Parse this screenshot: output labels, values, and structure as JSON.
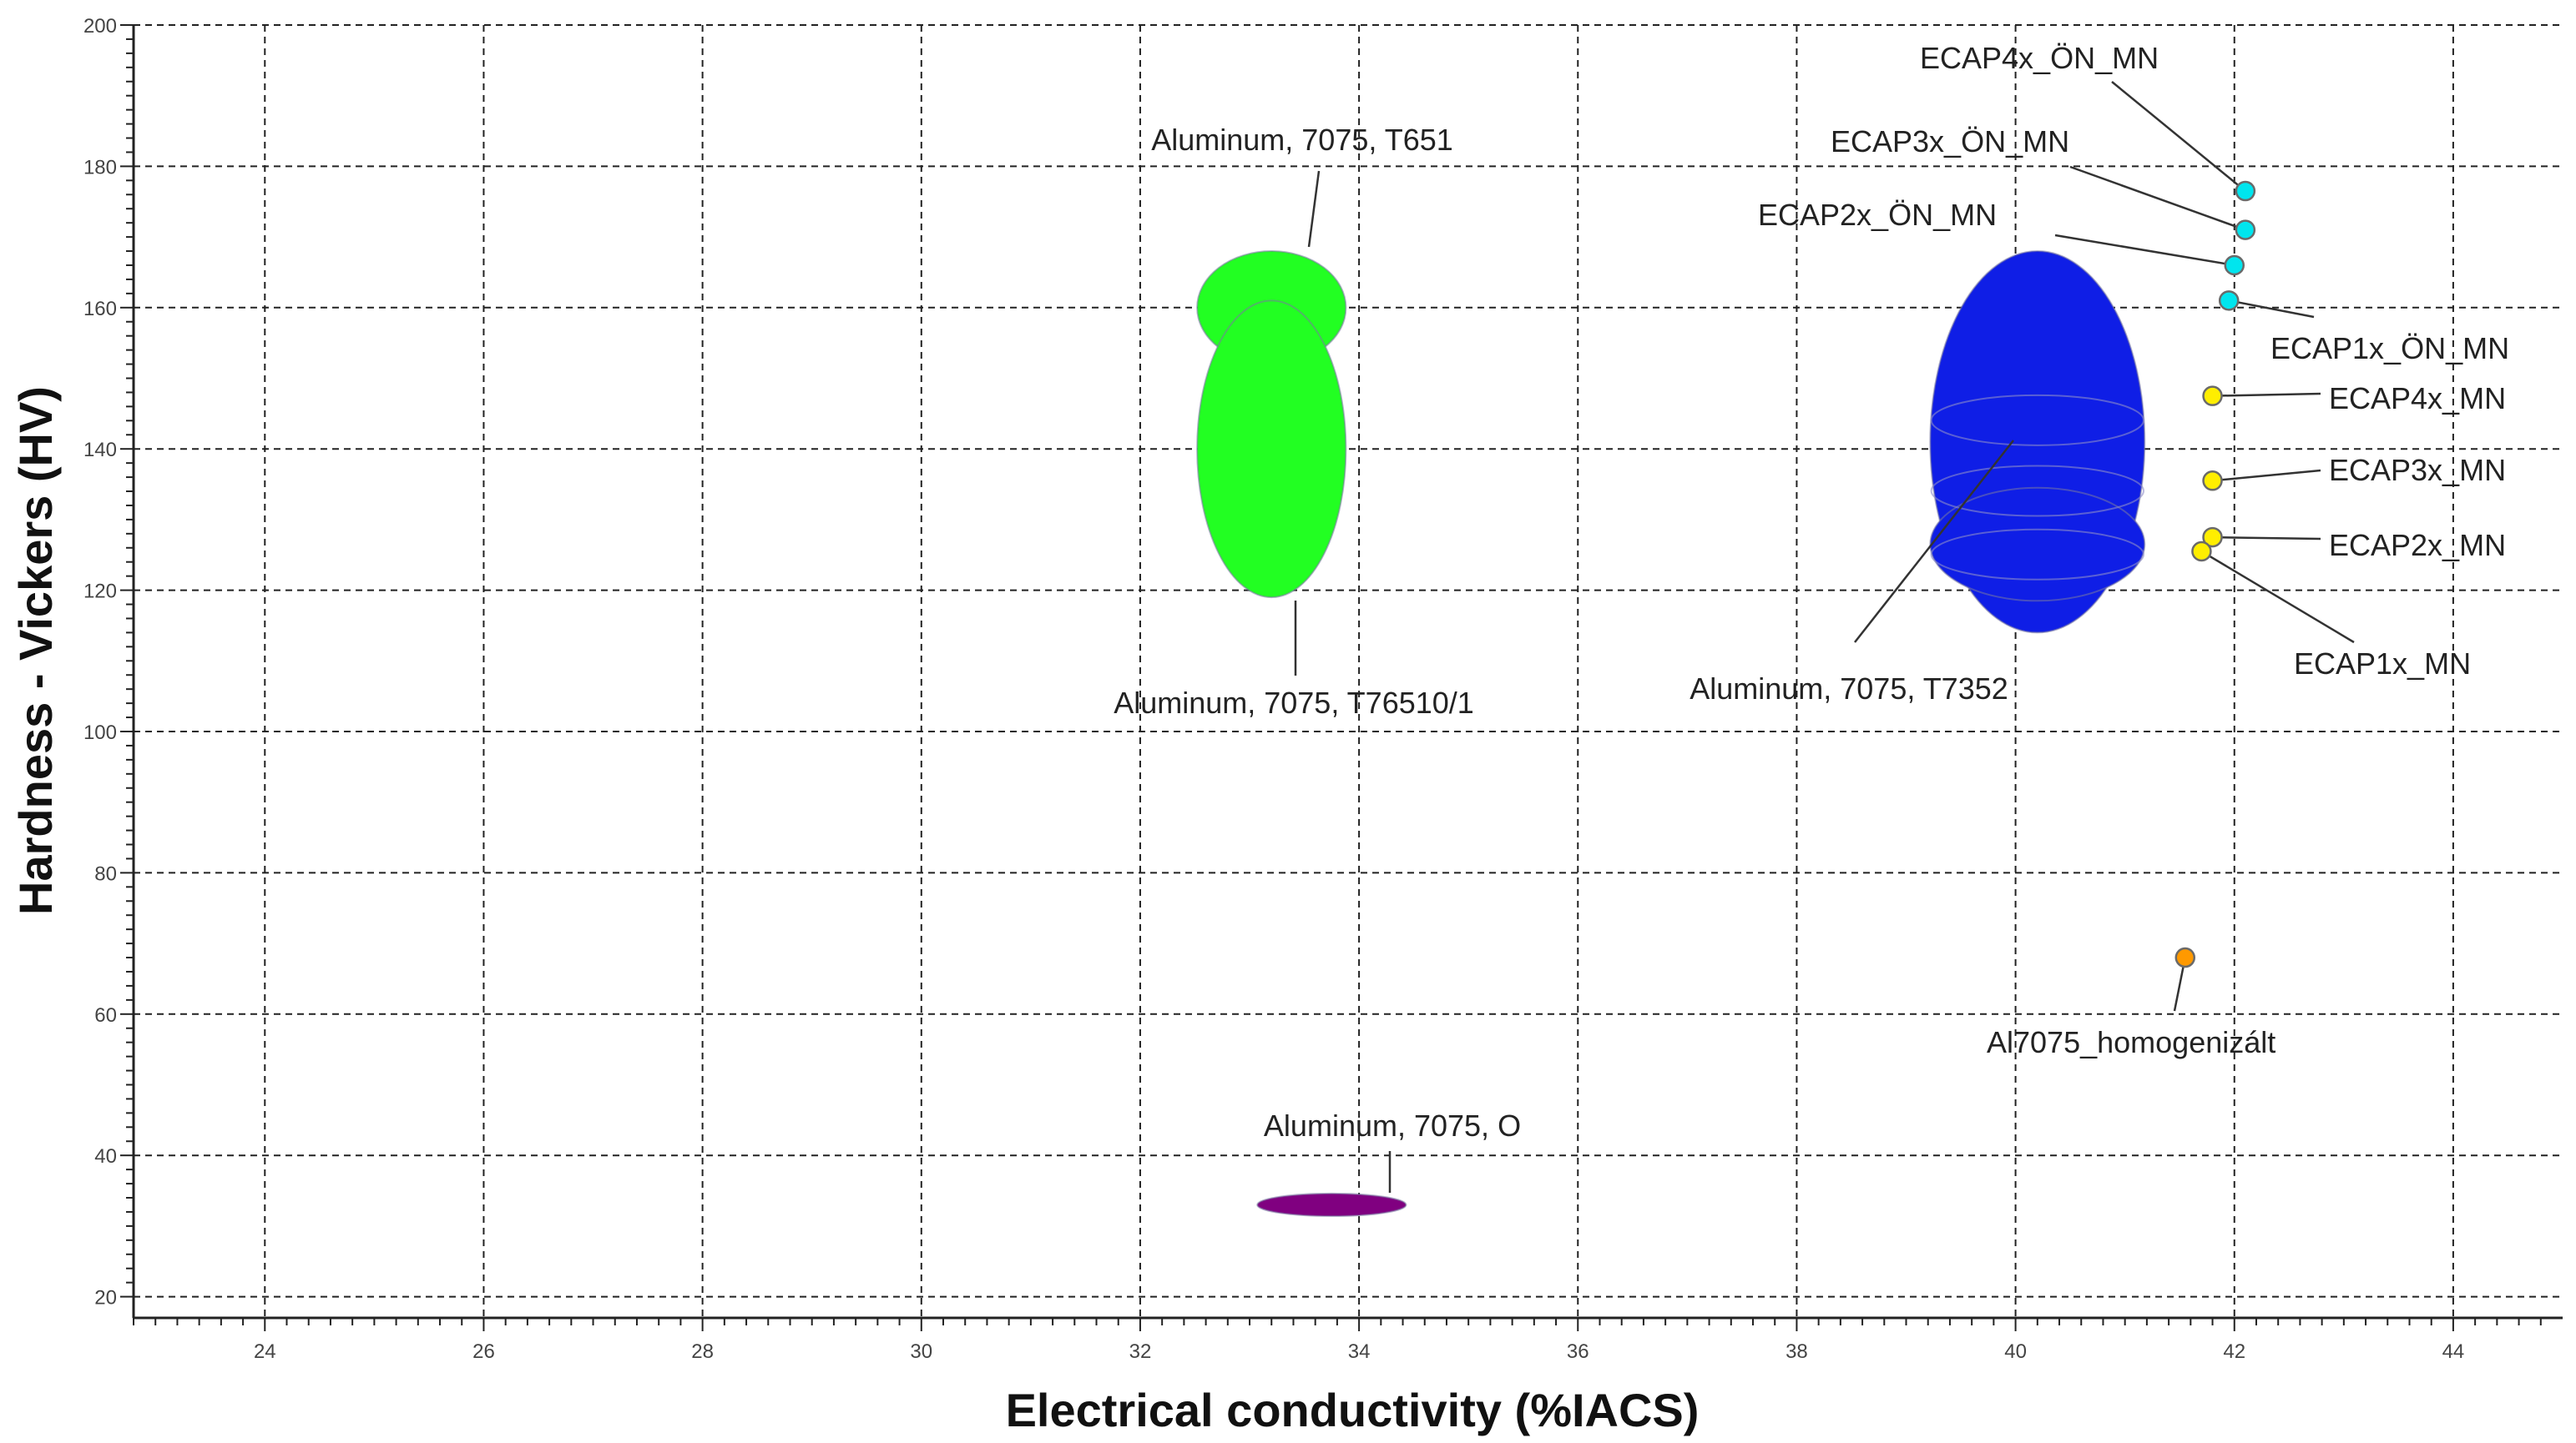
{
  "chart_data": {
    "type": "scatter",
    "title": "",
    "xlabel": "Electrical conductivity (%IACS)",
    "ylabel": "Hardness - Vickers (HV)",
    "xlim": [
      22.8,
      45.0
    ],
    "ylim": [
      17,
      200
    ],
    "xticks": [
      24,
      26,
      28,
      30,
      32,
      34,
      36,
      38,
      40,
      42,
      44
    ],
    "yticks": [
      20,
      40,
      60,
      80,
      100,
      120,
      140,
      160,
      180,
      200
    ],
    "grid": true,
    "legend": "none",
    "regions": [
      {
        "label": "Aluminum, 7075, T651",
        "color": "#22ff22",
        "cx": 33.2,
        "cy": 160,
        "rx": 0.68,
        "ry": 8
      },
      {
        "label": "Aluminum, 7075, T76510/1",
        "color": "#22ff22",
        "cx": 33.2,
        "cy": 140,
        "rx": 0.68,
        "ry": 21
      },
      {
        "label": "Aluminum, 7075, T7352",
        "color": "#0f1ee6",
        "cx": 40.2,
        "cy": 141,
        "rx": 0.98,
        "ry": 27
      },
      {
        "label": "",
        "color": "#0f1ee6",
        "cx": 40.2,
        "cy": 126.5,
        "rx": 0.98,
        "ry": 8
      },
      {
        "label": "Aluminum, 7075, O",
        "color": "#800080",
        "cx": 33.75,
        "cy": 33,
        "rx": 0.68,
        "ry": 1.6
      }
    ],
    "series": [
      {
        "color": "#00e5ee",
        "points": [
          {
            "label": "ECAP4x_ÖN_MN",
            "x": 42.1,
            "y": 176.5
          },
          {
            "label": "ECAP3x_ÖN_MN",
            "x": 42.1,
            "y": 171
          },
          {
            "label": "ECAP2x_ÖN_MN",
            "x": 42.0,
            "y": 166
          },
          {
            "label": "ECAP1x_ÖN_MN",
            "x": 41.95,
            "y": 161
          }
        ]
      },
      {
        "color": "#ffee00",
        "points": [
          {
            "label": "ECAP4x_MN",
            "x": 41.8,
            "y": 147.5
          },
          {
            "label": "ECAP3x_MN",
            "x": 41.8,
            "y": 135.5
          },
          {
            "label": "ECAP2x_MN",
            "x": 41.8,
            "y": 127.5
          },
          {
            "label": "ECAP1x_MN",
            "x": 41.7,
            "y": 125.5
          }
        ]
      },
      {
        "color": "#ff9900",
        "points": [
          {
            "label": "Al7075_homogenizált",
            "x": 41.55,
            "y": 68
          }
        ]
      }
    ]
  }
}
